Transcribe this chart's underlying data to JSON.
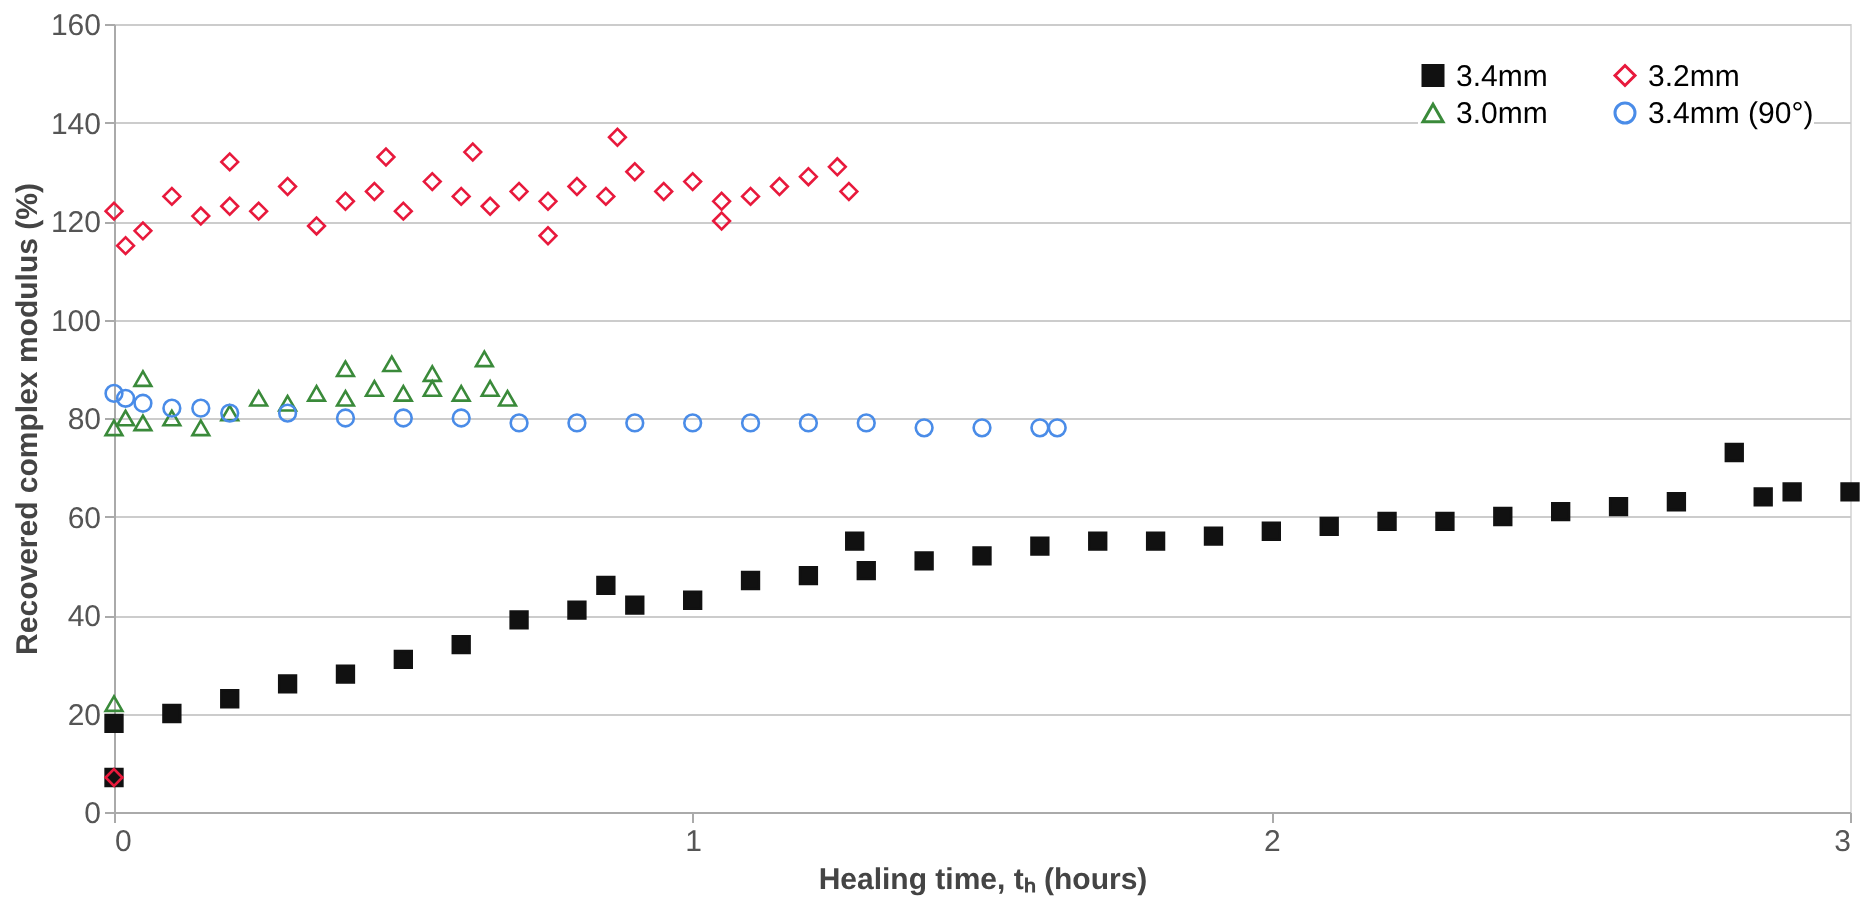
{
  "chart_data": {
    "type": "scatter",
    "xlabel": "Healing time, tₕ (hours)",
    "ylabel": "Recovered complex modulus (%)",
    "xlim": [
      0,
      3
    ],
    "xticks": [
      0,
      1,
      2,
      3
    ],
    "ylim": [
      0,
      160
    ],
    "yticks": [
      0,
      20,
      40,
      60,
      80,
      100,
      120,
      140,
      160
    ],
    "grid": "y",
    "legend": "top right",
    "series": [
      {
        "name": "3.4mm",
        "color": "#111111",
        "marker": "square",
        "x": [
          0,
          0,
          0.1,
          0.2,
          0.3,
          0.4,
          0.5,
          0.6,
          0.7,
          0.8,
          0.85,
          0.9,
          1.0,
          1.1,
          1.2,
          1.28,
          1.3,
          1.4,
          1.5,
          1.6,
          1.7,
          1.8,
          1.9,
          2.0,
          2.1,
          2.2,
          2.3,
          2.4,
          2.5,
          2.6,
          2.7,
          2.8,
          2.85,
          2.9,
          3.0
        ],
        "values": [
          7,
          18,
          20,
          23,
          26,
          28,
          31,
          34,
          39,
          41,
          46,
          42,
          43,
          47,
          48,
          55,
          49,
          51,
          52,
          54,
          55,
          55,
          56,
          57,
          58,
          59,
          59,
          60,
          61,
          62,
          63,
          73,
          64,
          65,
          65
        ]
      },
      {
        "name": "3.2mm",
        "color": "#e8193c",
        "marker": "diamond",
        "x": [
          0,
          0.05,
          0.1,
          0.15,
          0.2,
          0.25,
          0.3,
          0.35,
          0.4,
          0.45,
          0.5,
          0.55,
          0.6,
          0.65,
          0.7,
          0.75,
          0.8,
          0.85,
          0.9,
          0.95,
          1.0,
          1.05,
          1.1,
          1.15,
          1.2,
          1.25,
          1.27,
          0.02,
          0.2,
          0.47,
          0.62,
          0.75,
          0.87,
          1.05,
          0
        ],
        "values": [
          122,
          118,
          125,
          121,
          123,
          122,
          127,
          119,
          124,
          126,
          122,
          128,
          125,
          123,
          126,
          124,
          127,
          125,
          130,
          126,
          128,
          124,
          125,
          127,
          129,
          131,
          126,
          115,
          132,
          133,
          134,
          117,
          137,
          120,
          7
        ]
      },
      {
        "name": "3.0mm",
        "color": "#3a8a3a",
        "marker": "triangle",
        "x": [
          0,
          0,
          0.02,
          0.05,
          0.1,
          0.15,
          0.2,
          0.25,
          0.3,
          0.35,
          0.4,
          0.45,
          0.5,
          0.55,
          0.6,
          0.65,
          0.68,
          0.05,
          0.4,
          0.48,
          0.55,
          0.64
        ],
        "values": [
          22,
          78,
          80,
          79,
          80,
          78,
          81,
          84,
          83,
          85,
          84,
          86,
          85,
          86,
          85,
          86,
          84,
          88,
          90,
          91,
          89,
          92
        ]
      },
      {
        "name": "3.4mm (90°)",
        "color": "#4a8ce8",
        "marker": "circle",
        "x": [
          0,
          0.02,
          0.05,
          0.1,
          0.15,
          0.2,
          0.3,
          0.4,
          0.5,
          0.6,
          0.7,
          0.8,
          0.9,
          1.0,
          1.1,
          1.2,
          1.3,
          1.4,
          1.5,
          1.6,
          1.63
        ],
        "values": [
          85,
          84,
          83,
          82,
          82,
          81,
          81,
          80,
          80,
          80,
          79,
          79,
          79,
          79,
          79,
          79,
          79,
          78,
          78,
          78,
          78
        ]
      }
    ]
  }
}
